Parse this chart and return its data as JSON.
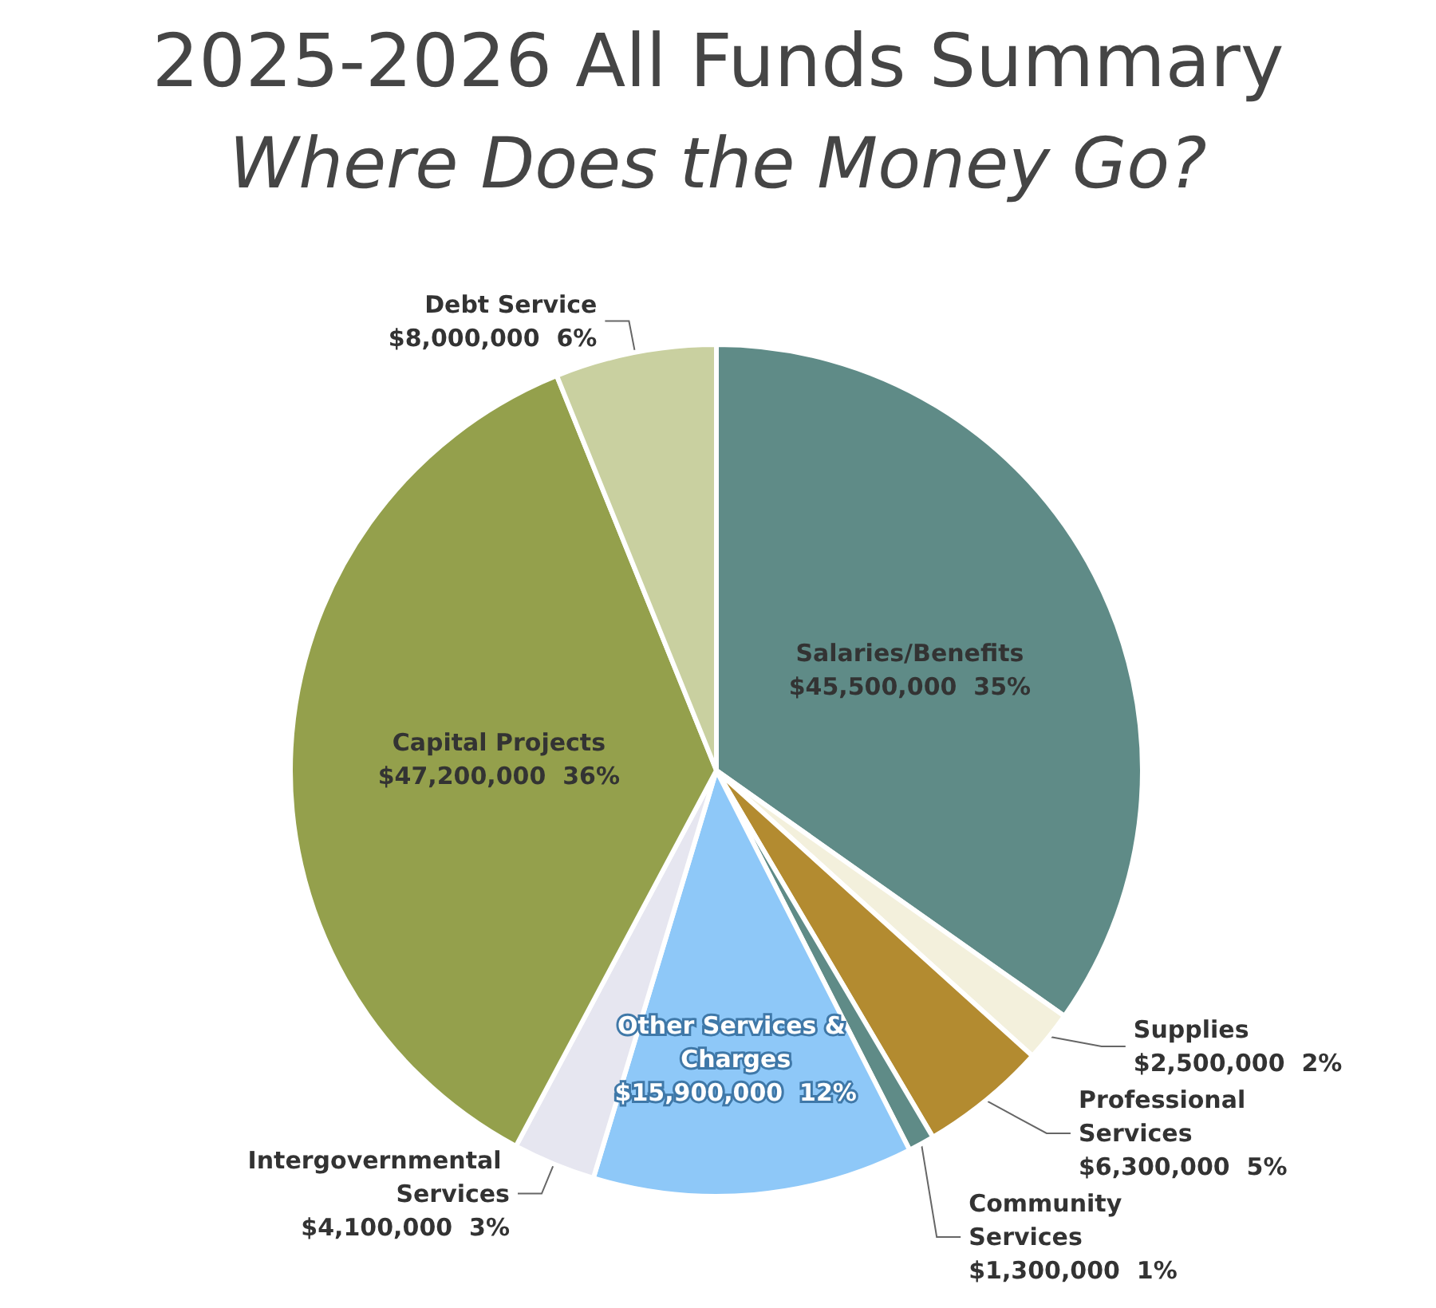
{
  "chart_data": {
    "type": "pie",
    "title": "2025-2026 All Funds Summary",
    "subtitle": "Where Does the Money Go?",
    "categories": [
      "Salaries/Benefits",
      "Supplies",
      "Professional Services",
      "Community Services",
      "Other Services & Charges",
      "Intergovernmental Services",
      "Capital Projects",
      "Debt Service"
    ],
    "values": [
      45500000,
      2500000,
      6300000,
      1300000,
      15900000,
      4100000,
      47200000,
      8000000
    ],
    "value_labels": [
      "$45,500,000  35%",
      "$2,500,000  2%",
      "$6,300,000  5%",
      "$1,300,000  1%",
      "$15,900,000  12%",
      "$4,100,000  3%",
      "$47,200,000  36%",
      "$8,000,000  6%"
    ],
    "colors": [
      "#5f8b87",
      "#f3f0dc",
      "#b38b30",
      "#5f8b87",
      "#8ec8f8",
      "#e6e6f0",
      "#94a04c",
      "#c9d0a0"
    ],
    "legend": false
  }
}
